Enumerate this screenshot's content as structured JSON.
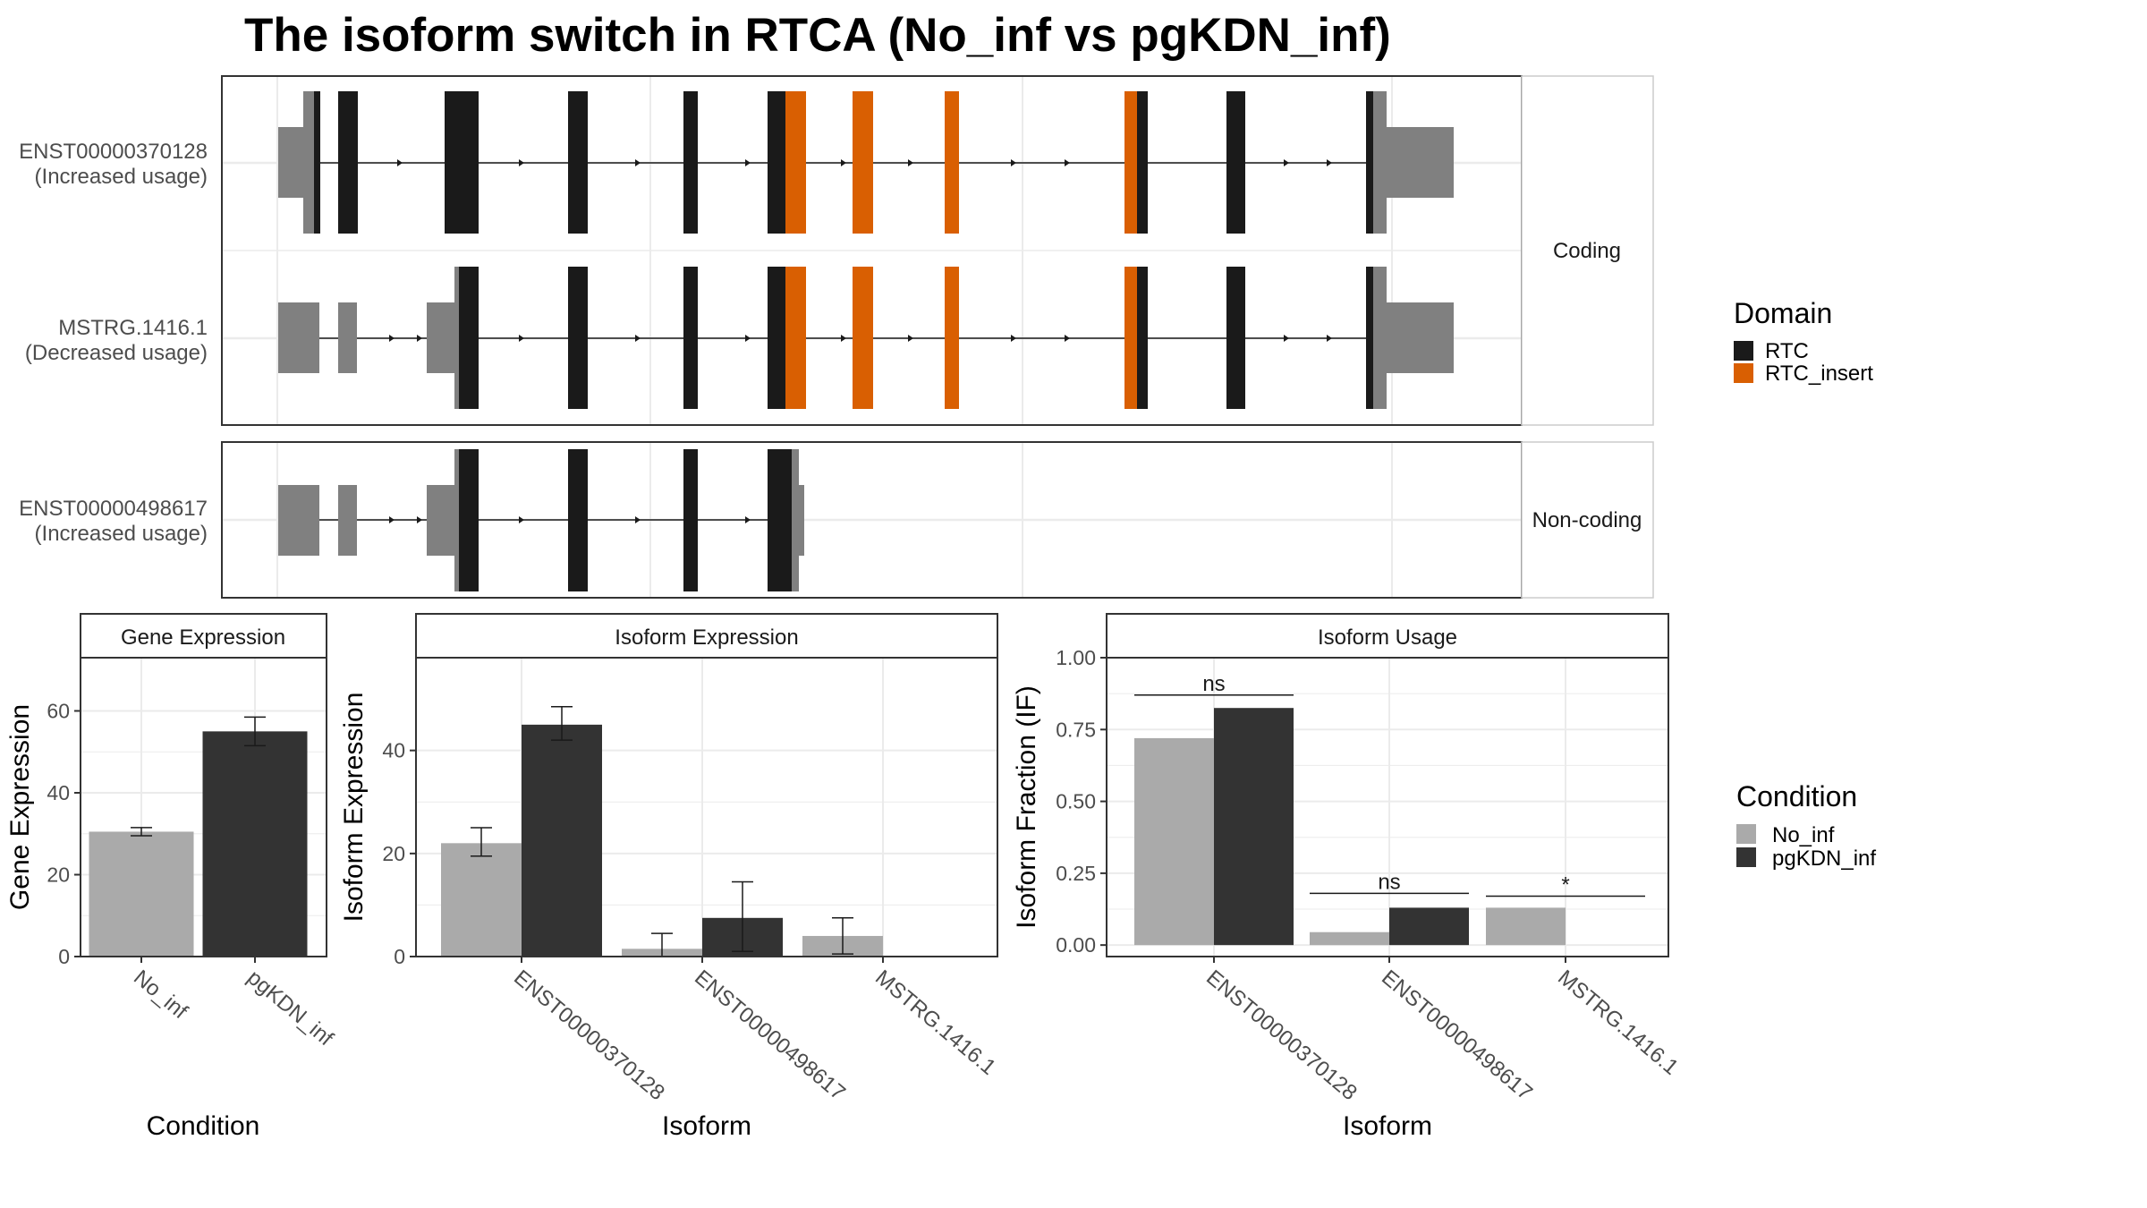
{
  "title": "The isoform switch in RTCA (No_inf vs pgKDN_inf)",
  "colors": {
    "utr": "#808080",
    "cds": "#1a1a1a",
    "RTC": "#1a1a1a",
    "RTC_insert": "#d95f02",
    "No_inf": "#aaaaaa",
    "pgKDN_inf": "#333333",
    "panel_border": "#333333",
    "strip_fill": "#ffffff",
    "grid": "#ebebeb"
  },
  "structure": {
    "strips": {
      "coding": "Coding",
      "noncoding": "Non-coding"
    },
    "isoforms": [
      {
        "id": "ENST00000370128",
        "usage": "(Increased usage)",
        "group": "coding"
      },
      {
        "id": "MSTRG.1416.1",
        "usage": "(Decreased usage)",
        "group": "coding"
      },
      {
        "id": "ENST00000498617",
        "usage": "(Increased usage)",
        "group": "noncoding"
      }
    ],
    "legend": {
      "title": "Domain",
      "items": [
        "RTC",
        "RTC_insert"
      ]
    }
  },
  "condition_legend": {
    "title": "Condition",
    "items": [
      "No_inf",
      "pgKDN_inf"
    ]
  },
  "chart_data": [
    {
      "type": "bar",
      "strip": "Gene Expression",
      "xlabel": "Condition",
      "ylabel": "Gene Expression",
      "ylim": [
        0,
        73
      ],
      "yticks": [
        0,
        20,
        40,
        60
      ],
      "categories": [
        "No_inf",
        "pgKDN_inf"
      ],
      "values": [
        30.5,
        55
      ],
      "errors": [
        [
          29.5,
          31.5
        ],
        [
          51.5,
          58.5
        ]
      ]
    },
    {
      "type": "bar",
      "strip": "Isoform Expression",
      "xlabel": "Isoform",
      "ylabel": "Isoform Expression",
      "ylim": [
        0,
        58
      ],
      "yticks": [
        0,
        20,
        40
      ],
      "categories": [
        "ENST00000370128",
        "ENST00000498617",
        "MSTRG.1416.1"
      ],
      "series": [
        {
          "name": "No_inf",
          "values": [
            22,
            1.5,
            4
          ],
          "errors": [
            [
              19.5,
              25
            ],
            [
              0,
              4.5
            ],
            [
              0.5,
              7.5
            ]
          ]
        },
        {
          "name": "pgKDN_inf",
          "values": [
            45,
            7.5,
            0
          ],
          "errors": [
            [
              42,
              48.5
            ],
            [
              1,
              14.5
            ],
            [
              0,
              0
            ]
          ]
        }
      ]
    },
    {
      "type": "bar",
      "strip": "Isoform Usage",
      "xlabel": "Isoform",
      "ylabel": "Isoform Fraction (IF)",
      "ylim": [
        -0.04,
        1.0
      ],
      "yticks": [
        "0.00",
        "0.25",
        "0.50",
        "0.75",
        "1.00"
      ],
      "categories": [
        "ENST00000370128",
        "ENST00000498617",
        "MSTRG.1416.1"
      ],
      "series": [
        {
          "name": "No_inf",
          "values": [
            0.72,
            0.045,
            0.13
          ]
        },
        {
          "name": "pgKDN_inf",
          "values": [
            0.825,
            0.13,
            0
          ]
        }
      ],
      "significance": [
        {
          "category": "ENST00000370128",
          "label": "ns",
          "y": 0.87
        },
        {
          "category": "ENST00000498617",
          "label": "ns",
          "y": 0.18
        },
        {
          "category": "MSTRG.1416.1",
          "label": "*",
          "y": 0.17
        }
      ]
    }
  ]
}
